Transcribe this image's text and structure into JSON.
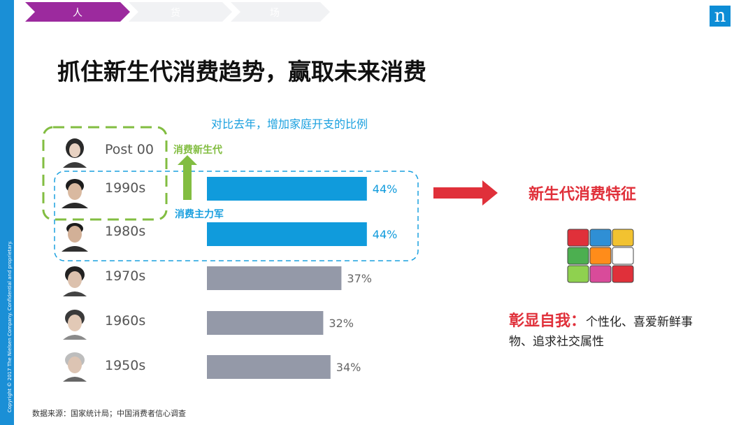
{
  "tabs": [
    "人",
    "货",
    "场"
  ],
  "logo": "n",
  "title": "抓住新生代消费趋势，赢取未来消费",
  "copyright": "Copyright © 2017 The Nielsen Company. Confidential and proprietary.",
  "badges": {
    "new_gen": "消费新生代",
    "main_force": "消费主力军"
  },
  "feature_title": "新生代消费特征",
  "trait": {
    "head": "彰显自我：",
    "body": "个性化、喜爱新鲜事物、追求社交属性"
  },
  "source": "数据来源：国家统计局；中国消费者信心调查",
  "colors": {
    "highlight": "#109bdc",
    "muted": "#9499a8",
    "green": "#82bd41",
    "red": "#e0303a",
    "sidebar": "#1a8fd6"
  },
  "chart_data": {
    "type": "bar",
    "orientation": "horizontal",
    "title": "对比去年，增加家庭开支的比例",
    "categories": [
      "Post 00",
      "1990s",
      "1980s",
      "1970s",
      "1960s",
      "1950s"
    ],
    "values": [
      null,
      44,
      44,
      37,
      32,
      34
    ],
    "value_labels": [
      "",
      "44%",
      "44%",
      "37%",
      "32%",
      "34%"
    ],
    "highlighted": [
      "1990s",
      "1980s"
    ],
    "xlim": [
      0,
      50
    ]
  }
}
